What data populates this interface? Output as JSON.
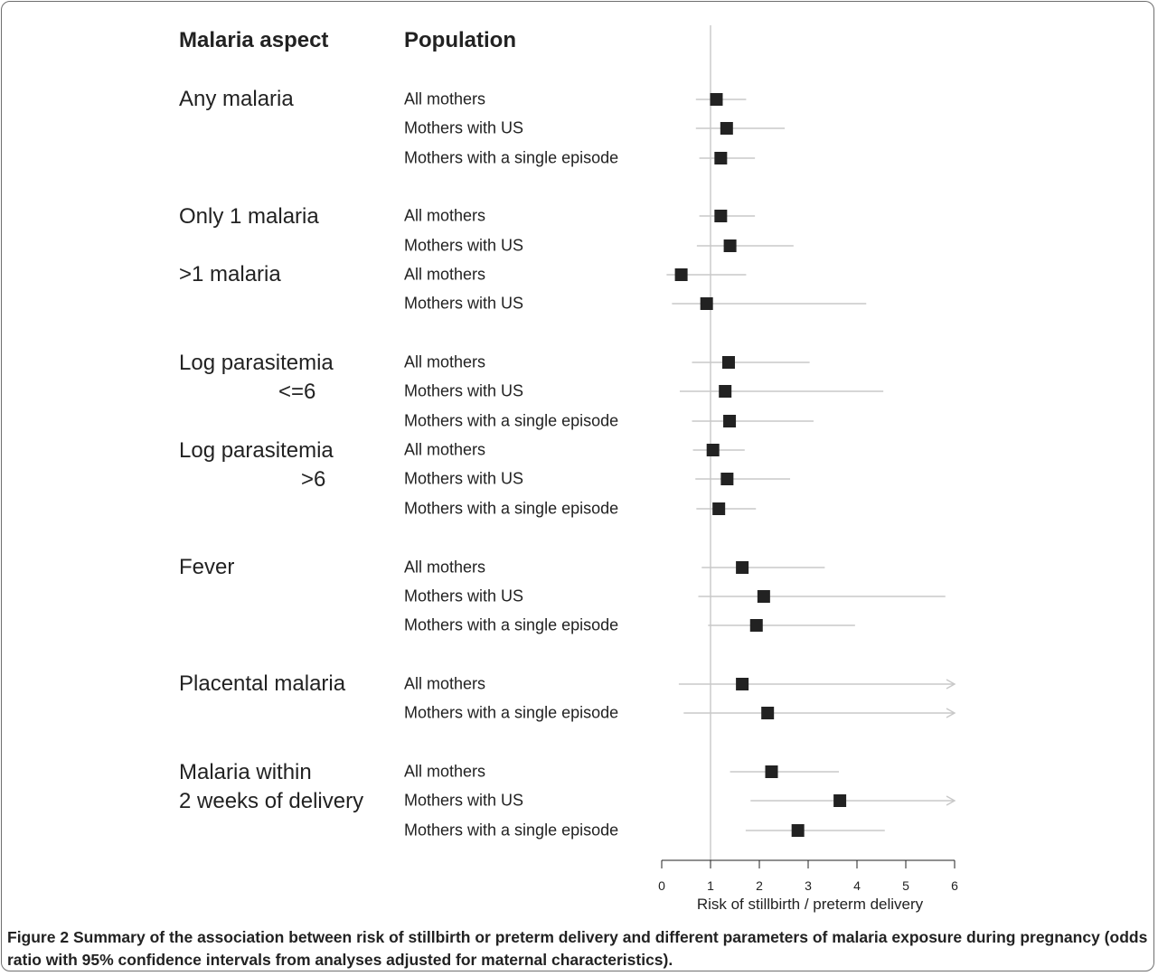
{
  "header": {
    "aspect": "Malaria aspect",
    "population": "Population"
  },
  "groups": [
    {
      "lines": [
        "Any malaria"
      ]
    },
    {
      "lines": [
        "Only 1 malaria"
      ]
    },
    {
      "lines": [
        ">1 malaria"
      ]
    },
    {
      "lines": [
        "Log parasitemia",
        "<=6"
      ]
    },
    {
      "lines": [
        "Log parasitemia",
        ">6"
      ]
    },
    {
      "lines": [
        "Fever"
      ]
    },
    {
      "lines": [
        "Placental malaria"
      ]
    },
    {
      "lines": [
        "Malaria within",
        "2 weeks of delivery"
      ]
    }
  ],
  "chart_data": {
    "type": "forest",
    "xlabel": "Risk of stillbirth / preterm delivery",
    "xlim": [
      0,
      6
    ],
    "xticks": [
      0,
      1,
      2,
      3,
      4,
      5,
      6
    ],
    "reference_line": 1,
    "rows": [
      {
        "group": "Any malaria",
        "population": "All mothers",
        "or": 1.12,
        "lo": 0.7,
        "hi": 1.73,
        "arrow": false
      },
      {
        "group": "Any malaria",
        "population": "Mothers with US",
        "or": 1.33,
        "lo": 0.7,
        "hi": 2.52,
        "arrow": false
      },
      {
        "group": "Any malaria",
        "population": "Mothers with a single episode",
        "or": 1.21,
        "lo": 0.77,
        "hi": 1.91,
        "arrow": false
      },
      {
        "group": "Only 1 malaria",
        "population": "All mothers",
        "or": 1.21,
        "lo": 0.77,
        "hi": 1.91,
        "arrow": false
      },
      {
        "group": "Only 1 malaria",
        "population": "Mothers with US",
        "or": 1.4,
        "lo": 0.72,
        "hi": 2.7,
        "arrow": false
      },
      {
        "group": ">1 malaria",
        "population": "All mothers",
        "or": 0.4,
        "lo": 0.1,
        "hi": 1.73,
        "arrow": false
      },
      {
        "group": ">1 malaria",
        "population": "Mothers with US",
        "or": 0.92,
        "lo": 0.21,
        "hi": 4.19,
        "arrow": false
      },
      {
        "group": "Log parasitemia <=6",
        "population": "All mothers",
        "or": 1.37,
        "lo": 0.62,
        "hi": 3.03,
        "arrow": false
      },
      {
        "group": "Log parasitemia <=6",
        "population": "Mothers with US",
        "or": 1.3,
        "lo": 0.37,
        "hi": 4.54,
        "arrow": false
      },
      {
        "group": "Log parasitemia <=6",
        "population": "Mothers with a single episode",
        "or": 1.39,
        "lo": 0.62,
        "hi": 3.11,
        "arrow": false
      },
      {
        "group": "Log parasitemia >6",
        "population": "All mothers",
        "or": 1.05,
        "lo": 0.64,
        "hi": 1.7,
        "arrow": false
      },
      {
        "group": "Log parasitemia >6",
        "population": "Mothers with US",
        "or": 1.34,
        "lo": 0.69,
        "hi": 2.63,
        "arrow": false
      },
      {
        "group": "Log parasitemia >6",
        "population": "Mothers with a single episode",
        "or": 1.17,
        "lo": 0.71,
        "hi": 1.93,
        "arrow": false
      },
      {
        "group": "Fever",
        "population": "All mothers",
        "or": 1.65,
        "lo": 0.82,
        "hi": 3.34,
        "arrow": false
      },
      {
        "group": "Fever",
        "population": "Mothers with US",
        "or": 2.09,
        "lo": 0.75,
        "hi": 5.81,
        "arrow": false
      },
      {
        "group": "Fever",
        "population": "Mothers with a single episode",
        "or": 1.94,
        "lo": 0.95,
        "hi": 3.96,
        "arrow": false
      },
      {
        "group": "Placental malaria",
        "population": "All mothers",
        "or": 1.65,
        "lo": 0.35,
        "hi": 6.0,
        "arrow": true
      },
      {
        "group": "Placental malaria",
        "population": "Mothers with a single episode",
        "or": 2.17,
        "lo": 0.45,
        "hi": 6.0,
        "arrow": true
      },
      {
        "group": "Malaria within 2 weeks of delivery",
        "population": "All mothers",
        "or": 2.25,
        "lo": 1.4,
        "hi": 3.63,
        "arrow": false
      },
      {
        "group": "Malaria within 2 weeks of delivery",
        "population": "Mothers with US",
        "or": 3.65,
        "lo": 1.82,
        "hi": 6.0,
        "arrow": true
      },
      {
        "group": "Malaria within 2 weeks of delivery",
        "population": "Mothers with a single episode",
        "or": 2.79,
        "lo": 1.72,
        "hi": 4.57,
        "arrow": false
      }
    ]
  },
  "caption": {
    "label": "Figure 2",
    "text": "Summary of the association between risk of stillbirth or preterm delivery and different parameters of malaria exposure during pregnancy (odds ratio with 95% confidence intervals from analyses adjusted for maternal characteristics)."
  }
}
